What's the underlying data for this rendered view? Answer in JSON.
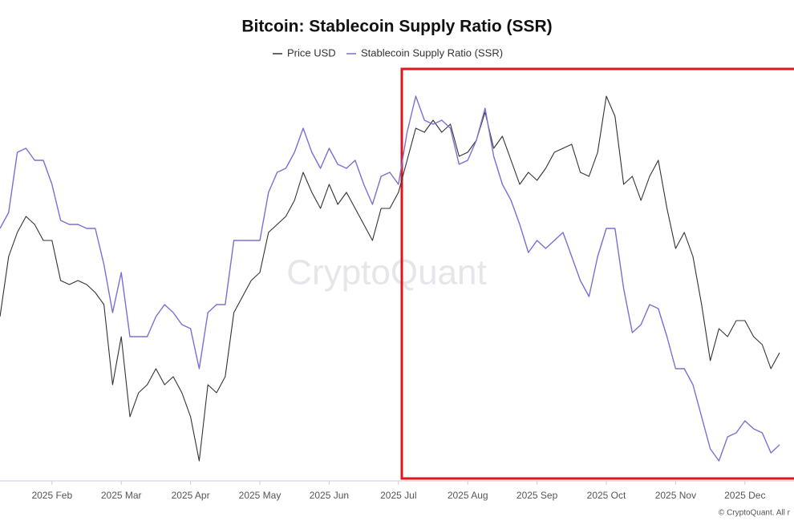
{
  "chart_data": {
    "type": "line",
    "title": "Bitcoin: Stablecoin Supply Ratio (SSR)",
    "watermark": "CryptoQuant",
    "credit": "© CryptoQuant. All r",
    "categories": [
      null,
      null,
      null,
      null,
      null,
      null,
      "2025 Feb",
      null,
      null,
      null,
      null,
      null,
      null,
      null,
      "2025 Mar",
      null,
      null,
      null,
      null,
      null,
      null,
      null,
      "2025 Apr",
      null,
      null,
      null,
      null,
      null,
      null,
      null,
      "2025 May",
      null,
      null,
      null,
      null,
      null,
      null,
      null,
      "2025 Jun",
      null,
      null,
      null,
      null,
      null,
      null,
      null,
      "2025 Jul",
      null,
      null,
      null,
      null,
      null,
      null,
      null,
      "2025 Aug",
      null,
      null,
      null,
      null,
      null,
      null,
      null,
      "2025 Sep",
      null,
      null,
      null,
      null,
      null,
      null,
      null,
      "2025 Oct",
      null,
      null,
      null,
      null,
      null,
      null,
      null,
      "2025 Nov",
      null,
      null,
      null,
      null,
      null,
      null,
      null,
      "2025 Dec",
      null,
      null,
      null,
      null
    ],
    "series": [
      {
        "name": "Price USD",
        "color": "#333333",
        "values": [
          205,
          280,
          310,
          330,
          320,
          300,
          300,
          250,
          245,
          250,
          245,
          235,
          220,
          120,
          180,
          80,
          110,
          120,
          140,
          120,
          130,
          110,
          80,
          25,
          120,
          110,
          130,
          210,
          230,
          250,
          260,
          310,
          320,
          330,
          350,
          385,
          360,
          340,
          370,
          345,
          360,
          340,
          320,
          300,
          340,
          340,
          360,
          400,
          440,
          435,
          450,
          435,
          445,
          405,
          410,
          425,
          460,
          415,
          430,
          400,
          370,
          385,
          375,
          390,
          410,
          415,
          420,
          385,
          380,
          410,
          480,
          455,
          370,
          380,
          350,
          380,
          400,
          340,
          290,
          310,
          280,
          220,
          150,
          190,
          180,
          200,
          200,
          180,
          170,
          140,
          160
        ]
      },
      {
        "name": "Stablecoin Supply Ratio (SSR)",
        "color": "#7b6fd6",
        "values": [
          315,
          335,
          410,
          415,
          400,
          400,
          370,
          325,
          320,
          320,
          315,
          315,
          270,
          210,
          260,
          180,
          180,
          180,
          205,
          220,
          210,
          195,
          190,
          140,
          210,
          220,
          220,
          300,
          300,
          300,
          300,
          360,
          385,
          390,
          410,
          440,
          410,
          390,
          415,
          395,
          390,
          400,
          370,
          345,
          380,
          385,
          370,
          435,
          480,
          450,
          445,
          450,
          440,
          395,
          400,
          425,
          465,
          405,
          370,
          350,
          320,
          285,
          300,
          290,
          300,
          310,
          280,
          250,
          230,
          280,
          315,
          315,
          240,
          185,
          195,
          220,
          215,
          180,
          140,
          140,
          120,
          80,
          40,
          25,
          55,
          60,
          75,
          65,
          60,
          35,
          45
        ]
      }
    ],
    "ylim": [
      0,
      510
    ]
  }
}
